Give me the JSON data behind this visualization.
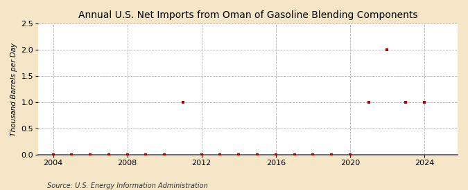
{
  "title": "Annual U.S. Net Imports from Oman of Gasoline Blending Components",
  "ylabel": "Thousand Barrels per Day",
  "source": "Source: U.S. Energy Information Administration",
  "background_color": "#f5e6c8",
  "plot_background": "#ffffff",
  "xlim": [
    2003.2,
    2025.8
  ],
  "ylim": [
    0.0,
    2.5
  ],
  "yticks": [
    0.0,
    0.5,
    1.0,
    1.5,
    2.0,
    2.5
  ],
  "xticks": [
    2004,
    2008,
    2012,
    2016,
    2020,
    2024
  ],
  "data_years": [
    2004,
    2005,
    2006,
    2007,
    2008,
    2009,
    2010,
    2011,
    2012,
    2013,
    2014,
    2015,
    2016,
    2017,
    2018,
    2019,
    2020,
    2021,
    2022,
    2023,
    2024
  ],
  "data_values": [
    0,
    0,
    0,
    0,
    0,
    0,
    0,
    1,
    0,
    0,
    0,
    0,
    0,
    0,
    0,
    0,
    0,
    1,
    2,
    1,
    1
  ],
  "marker_color": "#aa0000",
  "marker_size": 3.5,
  "grid_color": "#b0b0b0",
  "grid_style": "--",
  "title_fontsize": 10,
  "label_fontsize": 7.5,
  "tick_fontsize": 8,
  "source_fontsize": 7
}
